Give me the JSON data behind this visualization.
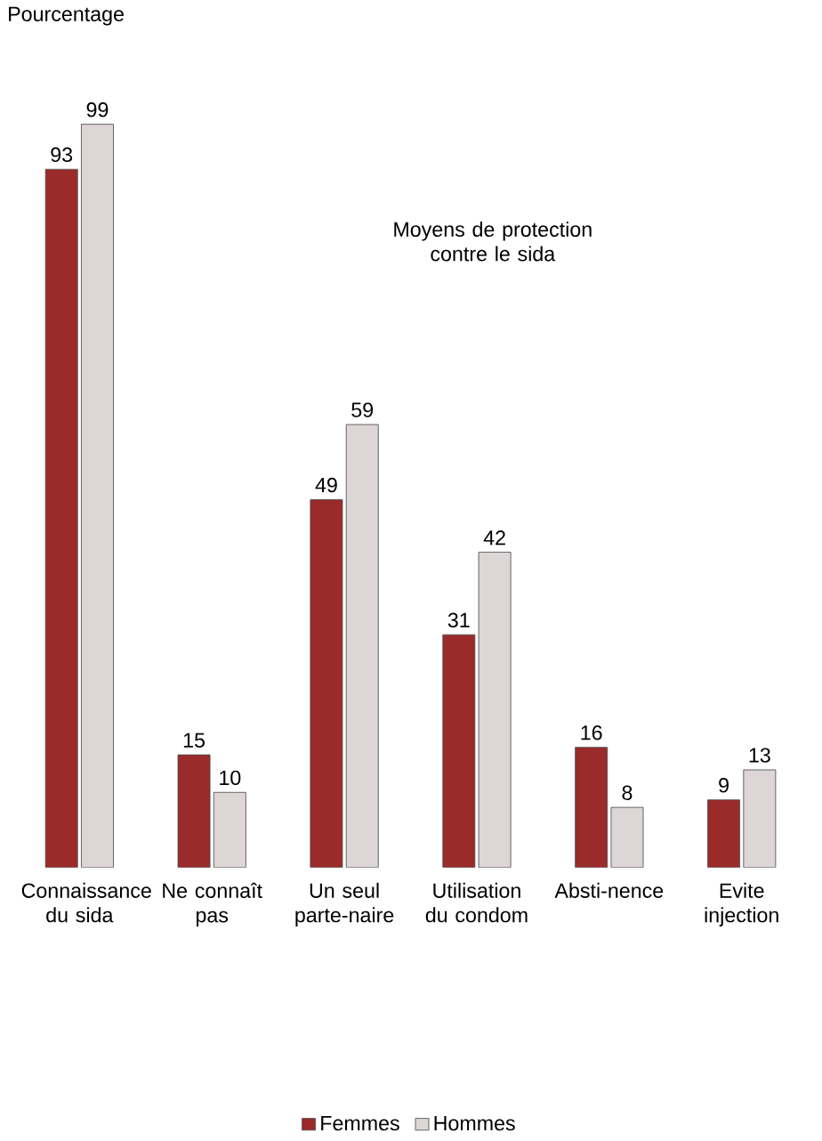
{
  "chart_data": {
    "type": "bar",
    "ylabel": "Pourcentage",
    "annotations": [
      "Moyens de protection contre le sida"
    ],
    "categories": [
      "Connaissance du sida",
      "Ne connaît pas",
      "Un seul parte-naire",
      "Utilisation du condom",
      "Absti-nence",
      "Evite injection"
    ],
    "series": [
      {
        "name": "Femmes",
        "color": "#9b2a2a",
        "values": [
          93,
          15,
          49,
          31,
          16,
          9
        ]
      },
      {
        "name": "Hommes",
        "color": "#dcd6d6",
        "values": [
          99,
          10,
          59,
          42,
          8,
          13
        ]
      }
    ],
    "data_labels": true,
    "legend": "bottom"
  }
}
